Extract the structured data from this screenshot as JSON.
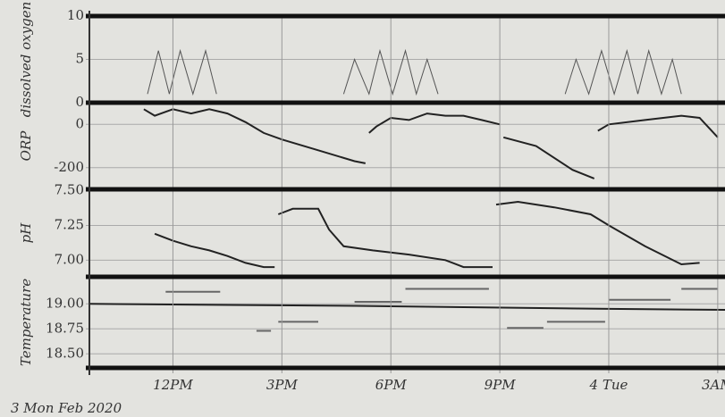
{
  "chart_data": [
    {
      "type": "line",
      "ylabel": "dissolved oxygen",
      "ylim": [
        0,
        10
      ],
      "yticks": [
        0,
        5,
        10
      ],
      "xlim": [
        9.7,
        27.2
      ],
      "series": [
        {
          "color": "#555555",
          "x": [
            11.3,
            11.6,
            11.9,
            12.2,
            12.55,
            12.9,
            13.2,
            null,
            16.7,
            17.0,
            17.4,
            17.7,
            18.05,
            18.4,
            18.7,
            19.0,
            19.3,
            null,
            22.8,
            23.1,
            23.45,
            23.8,
            24.15,
            24.5,
            24.8,
            25.1,
            25.45,
            25.75,
            26.0
          ],
          "values": [
            1,
            6,
            1,
            6,
            1,
            6,
            1,
            null,
            1,
            5,
            1,
            6,
            1,
            6,
            1,
            5,
            1,
            null,
            1,
            5,
            1,
            6,
            1,
            6,
            1,
            6,
            1,
            5,
            1
          ]
        }
      ]
    },
    {
      "type": "line",
      "ylabel": "ORP",
      "ylim": [
        -300,
        100
      ],
      "yticks": [
        0,
        -200
      ],
      "xlim": [
        9.7,
        27.2
      ],
      "series": [
        {
          "color": "#222222",
          "x": [
            11.2,
            11.5,
            12.0,
            12.5,
            13.0,
            13.5,
            14.0,
            14.5,
            15.0,
            16.0,
            17.0,
            17.3,
            null,
            17.4,
            17.6,
            18.0,
            18.5,
            19.0,
            19.5,
            20.0,
            20.5,
            21.0,
            null,
            21.1,
            22.0,
            23.0,
            23.6,
            null,
            23.7,
            24.0,
            25.0,
            26.0,
            26.5,
            27.0
          ],
          "values": [
            70,
            40,
            70,
            50,
            70,
            50,
            10,
            -40,
            -70,
            -120,
            -170,
            -180,
            null,
            -40,
            -10,
            30,
            20,
            50,
            40,
            40,
            20,
            0,
            null,
            -60,
            -100,
            -210,
            -250,
            null,
            -30,
            0,
            20,
            40,
            30,
            -60
          ]
        }
      ]
    },
    {
      "type": "line",
      "ylabel": "pH",
      "ylim": [
        6.88,
        7.51
      ],
      "yticks": [
        {
          "value": 7.5,
          "label": "7.50"
        },
        7.25,
        {
          "value": 7.0,
          "label": "7.00"
        }
      ],
      "xlim": [
        9.7,
        27.2
      ],
      "series": [
        {
          "color": "#222222",
          "x": [
            11.5,
            12.0,
            12.5,
            13.0,
            13.5,
            14.0,
            14.5,
            14.8,
            null,
            14.9,
            15.3,
            16.0,
            16.3,
            16.7,
            17.5,
            18.5,
            19.5,
            20.0,
            20.8,
            null,
            20.9,
            21.5,
            22.5,
            23.5,
            24.0,
            25.0,
            26.0,
            26.5,
            null,
            27.0
          ],
          "values": [
            7.19,
            7.14,
            7.1,
            7.07,
            7.03,
            6.98,
            6.95,
            6.95,
            null,
            7.33,
            7.37,
            7.37,
            7.22,
            7.1,
            7.07,
            7.04,
            7.0,
            6.95,
            6.95,
            null,
            7.4,
            7.42,
            7.38,
            7.33,
            7.25,
            7.1,
            6.97,
            6.98,
            null,
            7.35
          ]
        }
      ]
    },
    {
      "type": "line",
      "ylabel": "Temperature",
      "xlabel": "3 Mon Feb 2020",
      "ylim": [
        18.36,
        19.27
      ],
      "yticks": [
        {
          "value": 19.0,
          "label": "19.00"
        },
        18.75,
        {
          "value": 18.5,
          "label": "18.50"
        }
      ],
      "xlim": [
        9.7,
        27.2
      ],
      "xticks": [
        {
          "value": 12,
          "label": "12PM"
        },
        {
          "value": 15,
          "label": "3PM"
        },
        {
          "value": 18,
          "label": "6PM"
        },
        {
          "value": 21,
          "label": "9PM"
        },
        {
          "value": 24,
          "label": "4 Tue"
        },
        {
          "value": 27,
          "label": "3AM"
        }
      ],
      "series": [
        {
          "color": "#222222",
          "x": [
            9.7,
            17.0,
            24.0,
            27.2
          ],
          "values": [
            19.0,
            18.98,
            18.95,
            18.94
          ]
        },
        {
          "color": "#666666",
          "x": [
            11.8,
            13.3,
            null,
            14.3,
            14.7,
            null,
            14.9,
            16.0,
            null,
            17.0,
            18.3,
            null,
            18.4,
            20.7,
            null,
            21.2,
            22.2,
            null,
            22.3,
            23.9,
            null,
            24.0,
            25.7,
            null,
            26.0,
            27.0
          ],
          "values": [
            19.12,
            19.12,
            null,
            18.73,
            18.73,
            null,
            18.82,
            18.82,
            null,
            19.02,
            19.02,
            null,
            19.15,
            19.15,
            null,
            18.76,
            18.76,
            null,
            18.82,
            18.82,
            null,
            19.04,
            19.04,
            null,
            19.15,
            19.15
          ]
        }
      ]
    }
  ]
}
